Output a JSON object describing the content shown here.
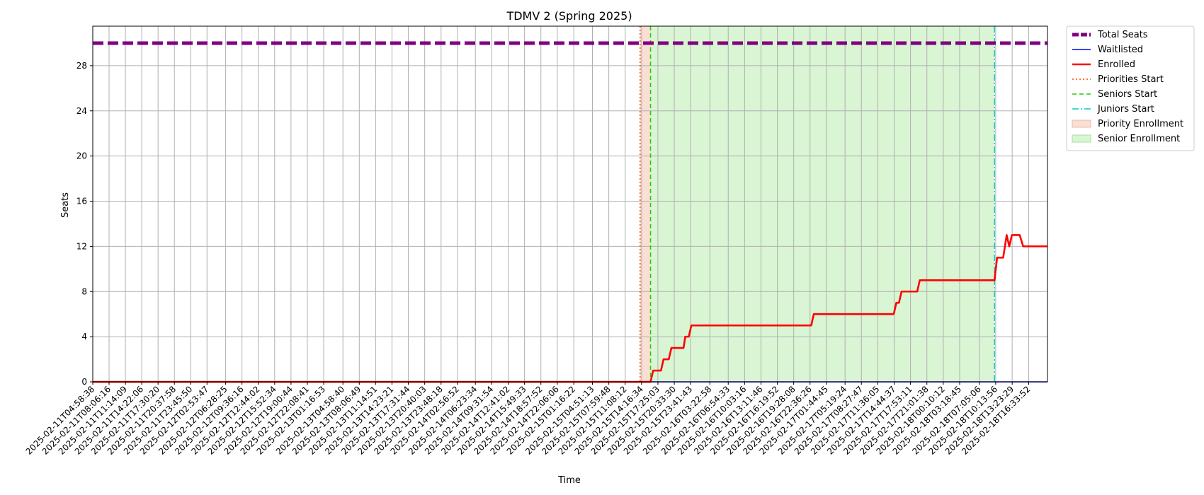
{
  "chart_data": {
    "type": "line",
    "title": "TDMV 2 (Spring 2025)",
    "xlabel": "Time",
    "ylabel": "Seats",
    "ylim": [
      0,
      31.5
    ],
    "yticks": [
      0,
      4,
      8,
      12,
      16,
      20,
      24,
      28
    ],
    "grid": true,
    "legend_position": "outside upper right",
    "xlim": [
      "2025-02-11T04:58:38",
      "2025-02-18T20:10:00"
    ],
    "xtick_labels": [
      "2025-02-11T04:58:38",
      "2025-02-11T08:06:16",
      "2025-02-11T11:14:09",
      "2025-02-11T14:22:06",
      "2025-02-11T17:30:20",
      "2025-02-11T20:37:58",
      "2025-02-11T23:45:50",
      "2025-02-12T02:53:47",
      "2025-02-12T06:28:25",
      "2025-02-12T09:36:16",
      "2025-02-12T12:44:02",
      "2025-02-12T15:52:34",
      "2025-02-12T19:00:44",
      "2025-02-12T22:08:41",
      "2025-02-13T01:16:53",
      "2025-02-13T04:58:40",
      "2025-02-13T08:06:49",
      "2025-02-13T11:14:51",
      "2025-02-13T14:23:21",
      "2025-02-13T17:31:44",
      "2025-02-13T20:40:03",
      "2025-02-13T23:48:18",
      "2025-02-14T02:56:52",
      "2025-02-14T06:23:34",
      "2025-02-14T09:31:54",
      "2025-02-14T12:41:02",
      "2025-02-14T15:49:33",
      "2025-02-14T18:57:52",
      "2025-02-14T22:06:06",
      "2025-02-15T01:16:22",
      "2025-02-15T04:51:13",
      "2025-02-15T07:59:48",
      "2025-02-15T11:08:12",
      "2025-02-15T14:16:34",
      "2025-02-15T17:25:03",
      "2025-02-15T20:33:30",
      "2025-02-15T23:41:43",
      "2025-02-16T03:22:58",
      "2025-02-16T06:54:33",
      "2025-02-16T10:03:16",
      "2025-02-16T13:11:46",
      "2025-02-16T16:19:52",
      "2025-02-16T19:28:08",
      "2025-02-16T22:36:26",
      "2025-02-17T01:44:45",
      "2025-02-17T05:19:24",
      "2025-02-17T08:27:47",
      "2025-02-17T11:36:05",
      "2025-02-17T14:44:37",
      "2025-02-17T17:53:11",
      "2025-02-17T21:01:38",
      "2025-02-18T00:10:12",
      "2025-02-18T03:18:45",
      "2025-02-18T07:05:06",
      "2025-02-18T10:13:56",
      "2025-02-18T13:23:29",
      "2025-02-18T16:33:52"
    ],
    "series": [
      {
        "name": "Total Seats",
        "color": "#800080",
        "style": "dashed-thick",
        "points": [
          [
            "2025-02-11T04:58:38",
            30
          ],
          [
            "2025-02-18T20:10:00",
            30
          ]
        ]
      },
      {
        "name": "Waitlisted",
        "color": "#0000ff",
        "style": "solid-thin",
        "points": [
          [
            "2025-02-11T04:58:38",
            0
          ],
          [
            "2025-02-18T20:10:00",
            0
          ]
        ]
      },
      {
        "name": "Enrolled",
        "color": "#ff0000",
        "style": "solid-thick",
        "points": [
          [
            "2025-02-11T04:58:38",
            0
          ],
          [
            "2025-02-15T16:00:00",
            0
          ],
          [
            "2025-02-15T16:30:00",
            1
          ],
          [
            "2025-02-15T18:00:00",
            1
          ],
          [
            "2025-02-15T18:30:00",
            2
          ],
          [
            "2025-02-15T19:30:00",
            2
          ],
          [
            "2025-02-15T20:00:00",
            3
          ],
          [
            "2025-02-15T22:20:00",
            3
          ],
          [
            "2025-02-15T22:40:00",
            4
          ],
          [
            "2025-02-15T23:20:00",
            4
          ],
          [
            "2025-02-15T23:50:00",
            5
          ],
          [
            "2025-02-16T22:50:00",
            5
          ],
          [
            "2025-02-16T23:20:00",
            6
          ],
          [
            "2025-02-17T14:40:00",
            6
          ],
          [
            "2025-02-17T15:10:00",
            7
          ],
          [
            "2025-02-17T15:40:00",
            7
          ],
          [
            "2025-02-17T16:10:00",
            8
          ],
          [
            "2025-02-17T19:10:00",
            8
          ],
          [
            "2025-02-17T19:40:00",
            9
          ],
          [
            "2025-02-18T10:00:00",
            9
          ],
          [
            "2025-02-18T10:30:00",
            11
          ],
          [
            "2025-02-18T11:40:00",
            11
          ],
          [
            "2025-02-18T12:20:00",
            13
          ],
          [
            "2025-02-18T12:50:00",
            12
          ],
          [
            "2025-02-18T13:20:00",
            13
          ],
          [
            "2025-02-18T14:50:00",
            13
          ],
          [
            "2025-02-18T15:30:00",
            12
          ],
          [
            "2025-02-18T20:10:00",
            12
          ]
        ]
      }
    ],
    "vlines": [
      {
        "name": "Priorities Start",
        "x": "2025-02-15T14:00:00",
        "color": "#ff4500",
        "style": "dotted"
      },
      {
        "name": "Seniors Start",
        "x": "2025-02-15T16:00:00",
        "color": "#22cc00",
        "style": "dashed"
      },
      {
        "name": "Juniors Start",
        "x": "2025-02-18T10:00:00",
        "color": "#00cccc",
        "style": "dashdot"
      }
    ],
    "spans": [
      {
        "name": "Priority Enrollment",
        "from": "2025-02-15T14:00:00",
        "to": "2025-02-15T16:00:00",
        "color": "#f9dfd4"
      },
      {
        "name": "Senior Enrollment",
        "from": "2025-02-15T16:00:00",
        "to": "2025-02-18T10:00:00",
        "color": "#d9f5d3"
      }
    ],
    "legend": [
      {
        "label": "Total Seats",
        "kind": "line",
        "color": "#800080",
        "style": "dashed-thick"
      },
      {
        "label": "Waitlisted",
        "kind": "line",
        "color": "#0000ff",
        "style": "solid-thin"
      },
      {
        "label": "Enrolled",
        "kind": "line",
        "color": "#ff0000",
        "style": "solid-thick"
      },
      {
        "label": "Priorities Start",
        "kind": "line",
        "color": "#ff4500",
        "style": "dotted"
      },
      {
        "label": "Seniors Start",
        "kind": "line",
        "color": "#22cc00",
        "style": "dashed"
      },
      {
        "label": "Juniors Start",
        "kind": "line",
        "color": "#00cccc",
        "style": "dashdot"
      },
      {
        "label": "Priority Enrollment",
        "kind": "patch",
        "color": "#f9dfd4",
        "edge": "#f0b8a8"
      },
      {
        "label": "Senior Enrollment",
        "kind": "patch",
        "color": "#d9f5d3",
        "edge": "#a8e0a0"
      }
    ]
  }
}
